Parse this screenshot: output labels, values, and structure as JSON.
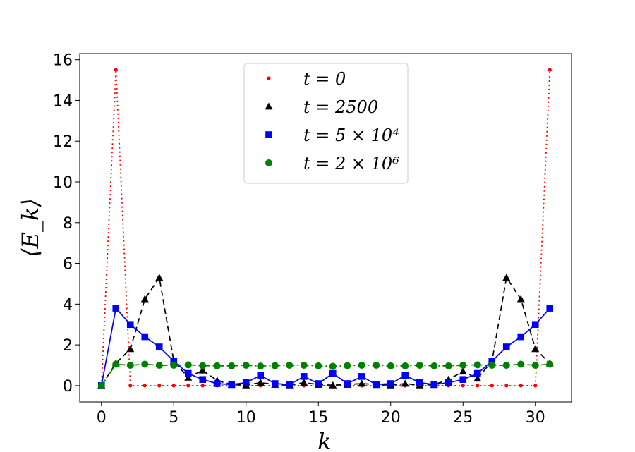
{
  "chart_data": {
    "type": "line",
    "xlabel": "k",
    "ylabel": "⟨E_k⟩",
    "xlim": [
      -1.5,
      32.5
    ],
    "ylim": [
      -0.8,
      16.3
    ],
    "xticks": [
      0,
      5,
      10,
      15,
      20,
      25,
      30
    ],
    "yticks": [
      0,
      2,
      4,
      6,
      8,
      10,
      12,
      14,
      16
    ],
    "grid": false,
    "legend_position": "top-center",
    "series": [
      {
        "name": "t = 0",
        "color": "#ff0000",
        "marker": "point",
        "linestyle": "dotted",
        "x": [
          0,
          1,
          2,
          3,
          4,
          5,
          6,
          7,
          8,
          9,
          10,
          11,
          12,
          13,
          14,
          15,
          16,
          17,
          18,
          19,
          20,
          21,
          22,
          23,
          24,
          25,
          26,
          27,
          28,
          29,
          30,
          31
        ],
        "y": [
          0,
          15.5,
          0,
          0,
          0,
          0,
          0,
          0,
          0,
          0,
          0,
          0,
          0,
          0,
          0,
          0,
          0,
          0,
          0,
          0,
          0,
          0,
          0,
          0,
          0,
          0,
          0,
          0,
          0,
          0,
          0,
          15.5
        ]
      },
      {
        "name": "t = 2500",
        "color": "#000000",
        "marker": "triangle",
        "linestyle": "dashed",
        "x": [
          0,
          1,
          2,
          3,
          4,
          5,
          6,
          7,
          8,
          9,
          10,
          11,
          12,
          13,
          14,
          15,
          16,
          17,
          18,
          19,
          20,
          21,
          22,
          23,
          24,
          25,
          26,
          27,
          28,
          29,
          30,
          31
        ],
        "y": [
          0,
          1.1,
          1.8,
          4.25,
          5.3,
          1.2,
          0.4,
          0.75,
          0.25,
          0.05,
          0.02,
          0.15,
          0.05,
          0.02,
          0.15,
          0.05,
          0.02,
          0.05,
          0.1,
          0.05,
          0.02,
          0.1,
          0.02,
          0.05,
          0.3,
          0.7,
          0.35,
          1.2,
          5.3,
          4.25,
          1.8,
          1.1
        ]
      },
      {
        "name": "t = 5 × 10⁴",
        "color": "#0000ff",
        "marker": "square",
        "linestyle": "solid",
        "x": [
          0,
          1,
          2,
          3,
          4,
          5,
          6,
          7,
          8,
          9,
          10,
          11,
          12,
          13,
          14,
          15,
          16,
          17,
          18,
          19,
          20,
          21,
          22,
          23,
          24,
          25,
          26,
          27,
          28,
          29,
          30,
          31
        ],
        "y": [
          0,
          3.8,
          3.0,
          2.4,
          1.9,
          1.2,
          0.6,
          0.3,
          0.1,
          0.05,
          0.15,
          0.5,
          0.1,
          0.05,
          0.45,
          0.1,
          0.6,
          0.1,
          0.45,
          0.05,
          0.1,
          0.5,
          0.15,
          0.05,
          0.15,
          0.3,
          0.6,
          1.2,
          1.9,
          2.4,
          3.0,
          3.8
        ]
      },
      {
        "name": "t = 2 × 10⁶",
        "color": "#008000",
        "marker": "circle",
        "linestyle": "dashdot",
        "x": [
          0,
          1,
          2,
          3,
          4,
          5,
          6,
          7,
          8,
          9,
          10,
          11,
          12,
          13,
          14,
          15,
          16,
          17,
          18,
          19,
          20,
          21,
          22,
          23,
          24,
          25,
          26,
          27,
          28,
          29,
          30,
          31
        ],
        "y": [
          0,
          1.05,
          1.0,
          1.05,
          1.0,
          1.0,
          1.02,
          0.98,
          0.97,
          0.97,
          1.0,
          0.96,
          0.98,
          1.0,
          1.0,
          0.97,
          0.95,
          0.98,
          1.0,
          1.0,
          0.97,
          0.97,
          1.0,
          0.97,
          0.97,
          1.0,
          1.02,
          1.0,
          1.0,
          1.05,
          1.0,
          1.05
        ]
      }
    ]
  }
}
